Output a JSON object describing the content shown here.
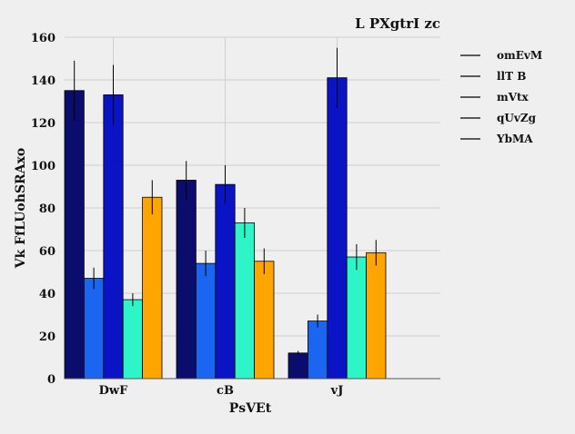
{
  "chart_data": {
    "type": "bar",
    "title": "L  PXgtrI zc",
    "xlabel": "PsVEt",
    "ylabel": "Vk FfLUohSRAxo",
    "categories": [
      "DwF",
      "cB",
      "vJ"
    ],
    "ylim": [
      0,
      160
    ],
    "yticks": [
      0,
      20,
      40,
      60,
      80,
      100,
      120,
      140,
      160
    ],
    "grid": true,
    "legend_position": "top-right",
    "series": [
      {
        "name": "omEvM",
        "color": "#0a0d6b",
        "values": [
          135,
          93,
          12
        ],
        "errors": [
          14,
          9,
          1
        ]
      },
      {
        "name": "llT B",
        "color": "#1a66f0",
        "values": [
          47,
          54,
          27
        ],
        "errors": [
          5,
          6,
          3
        ]
      },
      {
        "name": "mVtx",
        "color": "#0a14c4",
        "values": [
          133,
          91,
          141
        ],
        "errors": [
          14,
          9,
          14
        ]
      },
      {
        "name": "qUvZg",
        "color": "#2df5c8",
        "values": [
          37,
          73,
          57
        ],
        "errors": [
          3,
          7,
          6
        ]
      },
      {
        "name": "YbMA",
        "color": "#ffa500",
        "values": [
          85,
          55,
          59
        ],
        "errors": [
          8,
          6,
          6
        ]
      }
    ]
  }
}
